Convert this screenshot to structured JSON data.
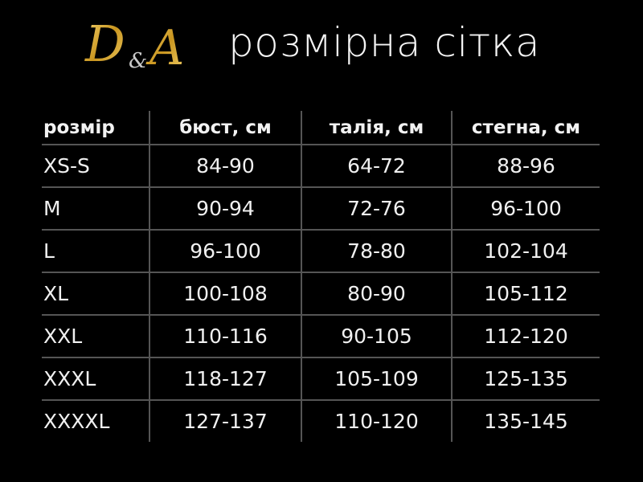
{
  "logo": {
    "text": "D&A",
    "color": "#d4a93a"
  },
  "title": "розмірна сітка",
  "table": {
    "headers": [
      "розмір",
      "бюст, см",
      "талія, см",
      "стегна, см"
    ],
    "rows": [
      [
        "XS-S",
        "84-90",
        "64-72",
        "88-96"
      ],
      [
        "M",
        "90-94",
        "72-76",
        "96-100"
      ],
      [
        "L",
        "96-100",
        "78-80",
        "102-104"
      ],
      [
        "XL",
        "100-108",
        "80-90",
        "105-112"
      ],
      [
        "XXL",
        "110-116",
        "90-105",
        "112-120"
      ],
      [
        "XXXL",
        "118-127",
        "105-109",
        "125-135"
      ],
      [
        "XXXXL",
        "127-137",
        "110-120",
        "135-145"
      ]
    ]
  }
}
